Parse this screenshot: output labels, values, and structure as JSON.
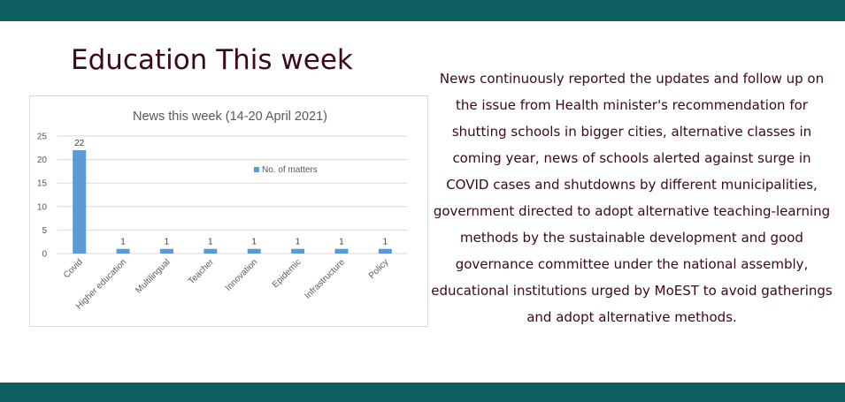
{
  "slide": {
    "title": "Education This week",
    "summary": "News continuously reported the updates and follow up on the issue from Health minister's recommendation for shutting schools in bigger cities, alternative classes in coming year, news of schools alerted against surge in COVID cases and shutdowns by different municipalities, government directed to adopt alternative teaching-learning methods by the sustainable development and good governance committee under the national assembly, educational institutions urged by MoEST to avoid gatherings and adopt alternative methods."
  },
  "colors": {
    "band": "#0c5e5f",
    "title_text": "#3b0a14",
    "bar": "#5b9bd5",
    "gridline": "#d9d9d9"
  },
  "chart_data": {
    "type": "bar",
    "title": "News this week (14-20 April 2021)",
    "categories": [
      "Covid",
      "Higher education",
      "Multilingual",
      "Teacher",
      "Innovation",
      "Epidemic",
      "Infrastructure",
      "Policy"
    ],
    "series": [
      {
        "name": "No. of matters",
        "values": [
          22,
          1,
          1,
          1,
          1,
          1,
          1,
          1
        ]
      }
    ],
    "ylim": [
      0,
      25
    ],
    "yticks": [
      0,
      5,
      10,
      15,
      20,
      25
    ],
    "grid": true,
    "data_labels": true,
    "legend_position": "top-right"
  }
}
